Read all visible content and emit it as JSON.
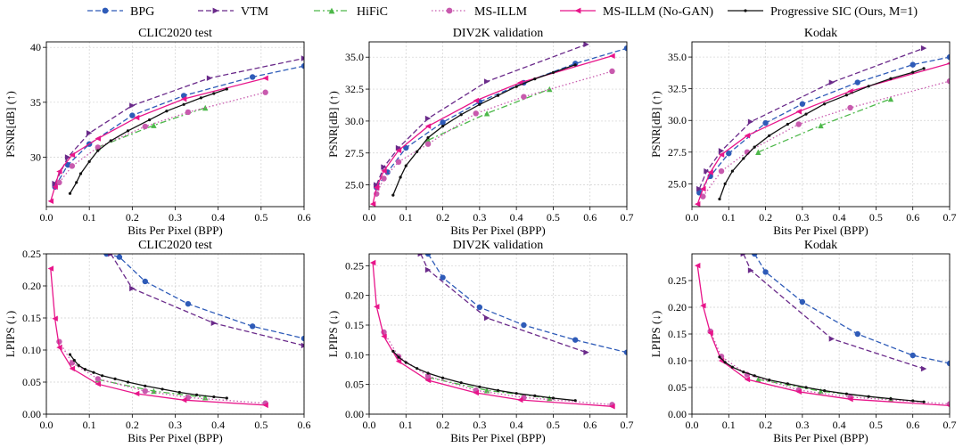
{
  "legend": [
    {
      "name": "BPG",
      "color": "#2E5BB8",
      "dash": "6,3",
      "marker": "circle"
    },
    {
      "name": "VTM",
      "color": "#6A2A8A",
      "dash": "6,3",
      "marker": "tri-right"
    },
    {
      "name": "HiFiC",
      "color": "#4DB84A",
      "dash": "7,3,2,3",
      "marker": "tri-up"
    },
    {
      "name": "MS-ILLM",
      "color": "#C85AAE",
      "dash": "1.5,2.5",
      "marker": "circle"
    },
    {
      "name": "MS-ILLM (No-GAN)",
      "color": "#E8158A",
      "dash": "",
      "marker": "tri-left"
    },
    {
      "name": "Progressive SIC (Ours, M=1)",
      "color": "#111111",
      "dash": "",
      "marker": "dot"
    }
  ],
  "chart_data": [
    {
      "type": "line",
      "title": "CLIC2020 test",
      "xlabel": "Bits Per Pixel (BPP)",
      "ylabel": "PSNR[dB] (↑)",
      "xlim": [
        0,
        0.6
      ],
      "ylim": [
        25.5,
        40.5
      ],
      "xticks": [
        "0.0",
        "0.1",
        "0.2",
        "0.3",
        "0.4",
        "0.5",
        "0.6"
      ],
      "xtick_values": [
        0,
        0.1,
        0.2,
        0.3,
        0.4,
        0.5,
        0.6
      ],
      "yticks": [
        "30",
        "35",
        "40"
      ],
      "ytick_values": [
        30,
        35,
        40
      ],
      "series": [
        {
          "name": "BPG",
          "x": [
            0.02,
            0.05,
            0.1,
            0.2,
            0.32,
            0.48,
            0.6
          ],
          "y": [
            27.3,
            29.3,
            31.2,
            33.8,
            35.6,
            37.3,
            38.3
          ]
        },
        {
          "name": "VTM",
          "x": [
            0.02,
            0.05,
            0.1,
            0.2,
            0.38,
            0.6
          ],
          "y": [
            27.6,
            30.0,
            32.2,
            34.7,
            37.2,
            39.0
          ]
        },
        {
          "name": "HiFiC",
          "x": [
            0.12,
            0.25,
            0.37
          ],
          "y": [
            30.9,
            32.9,
            34.5
          ]
        },
        {
          "name": "MS-ILLM",
          "x": [
            0.03,
            0.06,
            0.12,
            0.23,
            0.33,
            0.51
          ],
          "y": [
            27.7,
            29.2,
            30.9,
            32.8,
            34.1,
            35.9
          ]
        },
        {
          "name": "MS-ILLM (No-GAN)",
          "x": [
            0.01,
            0.02,
            0.03,
            0.06,
            0.12,
            0.21,
            0.32,
            0.51
          ],
          "y": [
            26.0,
            27.3,
            28.7,
            30.2,
            31.7,
            33.6,
            35.3,
            37.2
          ]
        },
        {
          "name": "Progressive SIC (Ours, M=1)",
          "x": [
            0.055,
            0.07,
            0.08,
            0.1,
            0.12,
            0.15,
            0.19,
            0.24,
            0.28,
            0.32,
            0.36,
            0.39,
            0.42
          ],
          "y": [
            26.7,
            27.7,
            28.5,
            29.6,
            30.6,
            31.5,
            32.4,
            33.4,
            34.2,
            34.8,
            35.4,
            35.8,
            36.2
          ]
        }
      ]
    },
    {
      "type": "line",
      "title": "DIV2K validation",
      "xlabel": "Bits Per Pixel (BPP)",
      "ylabel": "PSNR[dB] (↑)",
      "xlim": [
        0,
        0.7
      ],
      "ylim": [
        23.3,
        36.2
      ],
      "xticks": [
        "0.0",
        "0.1",
        "0.2",
        "0.3",
        "0.4",
        "0.5",
        "0.6",
        "0.7"
      ],
      "xtick_values": [
        0,
        0.1,
        0.2,
        0.3,
        0.4,
        0.5,
        0.6,
        0.7
      ],
      "yticks": [
        "25.0",
        "27.5",
        "30.0",
        "32.5",
        "35.0"
      ],
      "ytick_values": [
        25,
        27.5,
        30,
        32.5,
        35
      ],
      "series": [
        {
          "name": "BPG",
          "x": [
            0.02,
            0.05,
            0.1,
            0.2,
            0.3,
            0.42,
            0.56,
            0.7
          ],
          "y": [
            24.8,
            26.0,
            27.9,
            29.9,
            31.5,
            33.0,
            34.5,
            35.7
          ]
        },
        {
          "name": "VTM",
          "x": [
            0.02,
            0.04,
            0.08,
            0.16,
            0.32,
            0.59
          ],
          "y": [
            25.0,
            26.4,
            27.9,
            30.2,
            33.1,
            36.0
          ]
        },
        {
          "name": "HiFiC",
          "x": [
            0.16,
            0.32,
            0.49
          ],
          "y": [
            28.5,
            30.6,
            32.5
          ]
        },
        {
          "name": "MS-ILLM",
          "x": [
            0.02,
            0.04,
            0.08,
            0.16,
            0.29,
            0.42,
            0.66
          ],
          "y": [
            24.3,
            25.5,
            26.8,
            28.2,
            30.6,
            31.9,
            33.9
          ]
        },
        {
          "name": "MS-ILLM (No-GAN)",
          "x": [
            0.01,
            0.02,
            0.04,
            0.08,
            0.16,
            0.29,
            0.41,
            0.66
          ],
          "y": [
            23.5,
            24.8,
            26.1,
            27.7,
            29.6,
            31.6,
            33.0,
            35.1
          ]
        },
        {
          "name": "Progressive SIC (Ours, M=1)",
          "x": [
            0.065,
            0.085,
            0.1,
            0.13,
            0.16,
            0.2,
            0.25,
            0.3,
            0.35,
            0.4,
            0.45,
            0.5,
            0.56
          ],
          "y": [
            24.2,
            25.6,
            26.5,
            27.6,
            28.7,
            29.6,
            30.5,
            31.3,
            32.0,
            32.7,
            33.3,
            33.8,
            34.4
          ]
        }
      ]
    },
    {
      "type": "line",
      "title": "Kodak",
      "xlabel": "Bits Per Pixel (BPP)",
      "ylabel": "PSNR[dB] (↑)",
      "xlim": [
        0,
        0.7
      ],
      "ylim": [
        23.2,
        36.2
      ],
      "xticks": [
        "0.0",
        "0.1",
        "0.2",
        "0.3",
        "0.4",
        "0.5",
        "0.6",
        "0.7"
      ],
      "xtick_values": [
        0,
        0.1,
        0.2,
        0.3,
        0.4,
        0.5,
        0.6,
        0.7
      ],
      "yticks": [
        "25.0",
        "27.5",
        "30.0",
        "32.5",
        "35.0"
      ],
      "ytick_values": [
        25,
        27.5,
        30,
        32.5,
        35
      ],
      "series": [
        {
          "name": "BPG",
          "x": [
            0.02,
            0.05,
            0.1,
            0.2,
            0.3,
            0.45,
            0.6,
            0.7
          ],
          "y": [
            24.3,
            25.6,
            27.4,
            29.8,
            31.3,
            33.0,
            34.4,
            35.0
          ]
        },
        {
          "name": "VTM",
          "x": [
            0.02,
            0.04,
            0.08,
            0.16,
            0.38,
            0.63
          ],
          "y": [
            24.6,
            26.0,
            27.6,
            29.9,
            33.0,
            35.7
          ]
        },
        {
          "name": "HiFiC",
          "x": [
            0.18,
            0.35,
            0.54
          ],
          "y": [
            27.5,
            29.6,
            31.7
          ]
        },
        {
          "name": "MS-ILLM",
          "x": [
            0.03,
            0.08,
            0.15,
            0.29,
            0.43,
            0.7
          ],
          "y": [
            24.0,
            26.0,
            27.5,
            29.7,
            31.0,
            33.1
          ]
        },
        {
          "name": "MS-ILLM (No-GAN)",
          "x": [
            0.015,
            0.03,
            0.05,
            0.08,
            0.15,
            0.29,
            0.43,
            0.7
          ],
          "y": [
            23.4,
            24.6,
            25.9,
            27.3,
            28.8,
            30.7,
            32.3,
            34.5
          ]
        },
        {
          "name": "Progressive SIC (Ours, M=1)",
          "x": [
            0.075,
            0.09,
            0.11,
            0.14,
            0.17,
            0.21,
            0.26,
            0.31,
            0.36,
            0.42,
            0.48,
            0.54,
            0.6,
            0.63
          ],
          "y": [
            23.8,
            25.0,
            26.0,
            27.0,
            27.9,
            28.8,
            29.7,
            30.5,
            31.3,
            32.0,
            32.7,
            33.3,
            33.8,
            34.1
          ]
        }
      ]
    },
    {
      "type": "line",
      "title": "CLIC2020 test",
      "xlabel": "Bits Per Pixel (BPP)",
      "ylabel": "LPIPS (↓)",
      "xlim": [
        0,
        0.6
      ],
      "ylim": [
        0,
        0.25
      ],
      "xticks": [
        "0.0",
        "0.1",
        "0.2",
        "0.3",
        "0.4",
        "0.5",
        "0.6"
      ],
      "xtick_values": [
        0,
        0.1,
        0.2,
        0.3,
        0.4,
        0.5,
        0.6
      ],
      "yticks": [
        "0.00",
        "0.05",
        "0.10",
        "0.15",
        "0.20",
        "0.25"
      ],
      "ytick_values": [
        0,
        0.05,
        0.1,
        0.15,
        0.2,
        0.25
      ],
      "series": [
        {
          "name": "BPG",
          "x": [
            0.14,
            0.17,
            0.23,
            0.33,
            0.48,
            0.6
          ],
          "y": [
            0.25,
            0.245,
            0.207,
            0.172,
            0.137,
            0.118
          ]
        },
        {
          "name": "VTM",
          "x": [
            0.15,
            0.2,
            0.39,
            0.6
          ],
          "y": [
            0.25,
            0.196,
            0.142,
            0.107
          ]
        },
        {
          "name": "HiFiC",
          "x": [
            0.12,
            0.25,
            0.37
          ],
          "y": [
            0.054,
            0.036,
            0.026
          ]
        },
        {
          "name": "MS-ILLM",
          "x": [
            0.03,
            0.06,
            0.12,
            0.23,
            0.33,
            0.51
          ],
          "y": [
            0.113,
            0.08,
            0.055,
            0.036,
            0.026,
            0.017
          ]
        },
        {
          "name": "MS-ILLM (No-GAN)",
          "x": [
            0.01,
            0.02,
            0.03,
            0.06,
            0.12,
            0.21,
            0.32,
            0.51
          ],
          "y": [
            0.227,
            0.149,
            0.104,
            0.071,
            0.047,
            0.032,
            0.022,
            0.014
          ]
        },
        {
          "name": "Progressive SIC (Ours, M=1)",
          "x": [
            0.055,
            0.065,
            0.075,
            0.09,
            0.11,
            0.13,
            0.16,
            0.19,
            0.23,
            0.27,
            0.31,
            0.35,
            0.39,
            0.42
          ],
          "y": [
            0.093,
            0.084,
            0.076,
            0.07,
            0.065,
            0.06,
            0.055,
            0.05,
            0.044,
            0.039,
            0.034,
            0.03,
            0.027,
            0.025
          ]
        }
      ]
    },
    {
      "type": "line",
      "title": "DIV2K validation",
      "xlabel": "Bits Per Pixel (BPP)",
      "ylabel": "LPIPS (↓)",
      "xlim": [
        0,
        0.7
      ],
      "ylim": [
        0,
        0.27
      ],
      "xticks": [
        "0.0",
        "0.1",
        "0.2",
        "0.3",
        "0.4",
        "0.5",
        "0.6",
        "0.7"
      ],
      "xtick_values": [
        0,
        0.1,
        0.2,
        0.3,
        0.4,
        0.5,
        0.6,
        0.7
      ],
      "yticks": [
        "0.00",
        "0.05",
        "0.10",
        "0.15",
        "0.20",
        "0.25"
      ],
      "ytick_values": [
        0,
        0.05,
        0.1,
        0.15,
        0.2,
        0.25
      ],
      "series": [
        {
          "name": "BPG",
          "x": [
            0.16,
            0.2,
            0.3,
            0.42,
            0.56,
            0.7
          ],
          "y": [
            0.27,
            0.23,
            0.18,
            0.15,
            0.125,
            0.104
          ]
        },
        {
          "name": "VTM",
          "x": [
            0.14,
            0.16,
            0.32,
            0.59
          ],
          "y": [
            0.27,
            0.243,
            0.162,
            0.104
          ]
        },
        {
          "name": "HiFiC",
          "x": [
            0.16,
            0.32,
            0.49
          ],
          "y": [
            0.062,
            0.04,
            0.027
          ]
        },
        {
          "name": "MS-ILLM",
          "x": [
            0.04,
            0.08,
            0.16,
            0.29,
            0.42,
            0.66
          ],
          "y": [
            0.138,
            0.097,
            0.064,
            0.04,
            0.028,
            0.016
          ]
        },
        {
          "name": "MS-ILLM (No-GAN)",
          "x": [
            0.01,
            0.02,
            0.04,
            0.08,
            0.16,
            0.29,
            0.41,
            0.66
          ],
          "y": [
            0.255,
            0.181,
            0.131,
            0.089,
            0.057,
            0.036,
            0.024,
            0.013
          ]
        },
        {
          "name": "Progressive SIC (Ours, M=1)",
          "x": [
            0.065,
            0.08,
            0.1,
            0.13,
            0.16,
            0.2,
            0.25,
            0.3,
            0.35,
            0.4,
            0.45,
            0.5,
            0.56
          ],
          "y": [
            0.106,
            0.096,
            0.087,
            0.077,
            0.069,
            0.061,
            0.053,
            0.046,
            0.04,
            0.035,
            0.031,
            0.027,
            0.023
          ]
        }
      ]
    },
    {
      "type": "line",
      "title": "Kodak",
      "xlabel": "Bits Per Pixel (BPP)",
      "ylabel": "LPIPS (↓)",
      "xlim": [
        0,
        0.7
      ],
      "ylim": [
        0,
        0.3
      ],
      "xticks": [
        "0.0",
        "0.1",
        "0.2",
        "0.3",
        "0.4",
        "0.5",
        "0.6",
        "0.7"
      ],
      "xtick_values": [
        0,
        0.1,
        0.2,
        0.3,
        0.4,
        0.5,
        0.6,
        0.7
      ],
      "yticks": [
        "0.00",
        "0.05",
        "0.10",
        "0.15",
        "0.20",
        "0.25"
      ],
      "ytick_values": [
        0,
        0.05,
        0.1,
        0.15,
        0.2,
        0.25
      ],
      "series": [
        {
          "name": "BPG",
          "x": [
            0.17,
            0.2,
            0.3,
            0.45,
            0.6,
            0.7
          ],
          "y": [
            0.3,
            0.266,
            0.21,
            0.15,
            0.11,
            0.095
          ]
        },
        {
          "name": "VTM",
          "x": [
            0.14,
            0.16,
            0.38,
            0.63
          ],
          "y": [
            0.3,
            0.269,
            0.141,
            0.085
          ]
        },
        {
          "name": "HiFiC",
          "x": [
            0.18,
            0.35,
            0.54
          ],
          "y": [
            0.065,
            0.043,
            0.028
          ]
        },
        {
          "name": "MS-ILLM",
          "x": [
            0.05,
            0.08,
            0.15,
            0.29,
            0.43,
            0.7
          ],
          "y": [
            0.155,
            0.108,
            0.074,
            0.045,
            0.032,
            0.019
          ]
        },
        {
          "name": "MS-ILLM (No-GAN)",
          "x": [
            0.015,
            0.03,
            0.05,
            0.08,
            0.15,
            0.29,
            0.43,
            0.7
          ],
          "y": [
            0.278,
            0.203,
            0.152,
            0.1,
            0.065,
            0.042,
            0.028,
            0.016
          ]
        },
        {
          "name": "Progressive SIC (Ours, M=1)",
          "x": [
            0.075,
            0.09,
            0.11,
            0.14,
            0.17,
            0.21,
            0.26,
            0.31,
            0.36,
            0.42,
            0.48,
            0.54,
            0.6,
            0.63
          ],
          "y": [
            0.107,
            0.097,
            0.088,
            0.079,
            0.072,
            0.064,
            0.057,
            0.05,
            0.044,
            0.038,
            0.033,
            0.029,
            0.025,
            0.023
          ]
        }
      ]
    }
  ]
}
